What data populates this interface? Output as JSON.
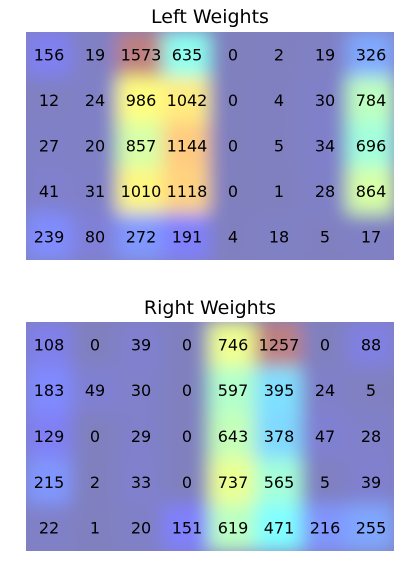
{
  "chart_data": [
    {
      "type": "heatmap",
      "title": "Left Weights",
      "rows": 5,
      "cols": 8,
      "values": [
        [
          156,
          19,
          1573,
          635,
          0,
          2,
          19,
          326
        ],
        [
          12,
          24,
          986,
          1042,
          0,
          4,
          30,
          784
        ],
        [
          27,
          20,
          857,
          1144,
          0,
          5,
          34,
          696
        ],
        [
          41,
          31,
          1010,
          1118,
          0,
          1,
          28,
          864
        ],
        [
          239,
          80,
          272,
          191,
          4,
          18,
          5,
          17
        ]
      ],
      "colormap": "jet",
      "overlay_opacity": 0.5,
      "axes_visible": false
    },
    {
      "type": "heatmap",
      "title": "Right Weights",
      "rows": 5,
      "cols": 8,
      "values": [
        [
          108,
          0,
          39,
          0,
          746,
          1257,
          0,
          88
        ],
        [
          183,
          49,
          30,
          0,
          597,
          395,
          24,
          5
        ],
        [
          129,
          0,
          29,
          0,
          643,
          378,
          47,
          28
        ],
        [
          215,
          2,
          33,
          0,
          737,
          565,
          5,
          39
        ],
        [
          22,
          1,
          20,
          151,
          619,
          471,
          216,
          255
        ]
      ],
      "colormap": "jet",
      "overlay_opacity": 0.5,
      "axes_visible": false
    }
  ]
}
